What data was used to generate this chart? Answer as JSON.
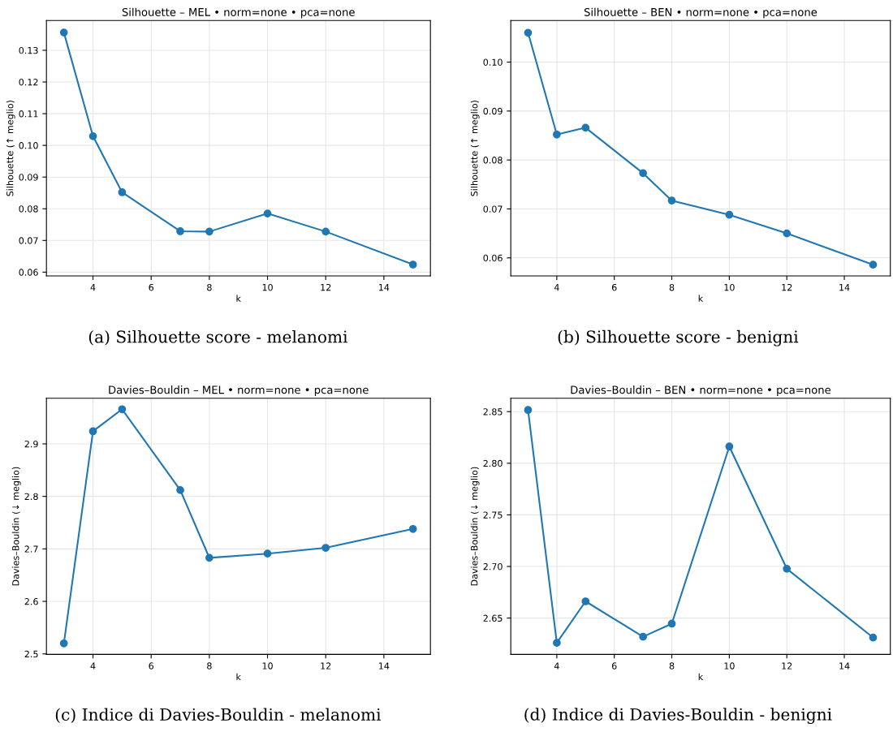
{
  "chart_data": [
    {
      "type": "line",
      "title": "Silhouette – MEL • norm=none • pca=none",
      "xlabel": "k",
      "ylabel": "Silhouette (↑ meglio)",
      "x": [
        3,
        4,
        5,
        7,
        8,
        10,
        12,
        15
      ],
      "series": [
        {
          "color": "#1f77b4",
          "values": [
            0.1356,
            0.1029,
            0.0852,
            0.0729,
            0.0728,
            0.0785,
            0.0728,
            0.0624
          ]
        }
      ],
      "xlim": [
        2.4,
        15.6
      ],
      "xticks": [
        4,
        6,
        8,
        10,
        12,
        14
      ],
      "ylim": [
        0.0588,
        0.1394
      ],
      "yticks": [
        0.06,
        0.07,
        0.08,
        0.09,
        {
          "value": 0.1,
          "label": "0.10"
        },
        0.11,
        0.12,
        0.13
      ],
      "grid": true,
      "marker": "circle",
      "line_style": "solid",
      "annotations": [
        "(a) Silhouette score - melanomi"
      ]
    },
    {
      "type": "line",
      "title": "Silhouette – BEN • norm=none • pca=none",
      "xlabel": "k",
      "ylabel": "Silhouette (↑ meglio)",
      "x": [
        3,
        4,
        5,
        7,
        8,
        10,
        12,
        15
      ],
      "series": [
        {
          "color": "#1f77b4",
          "values": [
            0.106,
            0.0852,
            0.0866,
            0.0773,
            0.0717,
            0.0688,
            0.065,
            0.0586
          ]
        }
      ],
      "xlim": [
        2.4,
        15.6
      ],
      "xticks": [
        4,
        6,
        8,
        10,
        12,
        14
      ],
      "ylim": [
        0.0563,
        0.1085
      ],
      "yticks": [
        0.06,
        0.07,
        0.08,
        0.09,
        {
          "value": 0.1,
          "label": "0.10"
        }
      ],
      "grid": true,
      "marker": "circle",
      "line_style": "solid",
      "annotations": [
        "(b) Silhouette score - benigni"
      ]
    },
    {
      "type": "line",
      "title": "Davies–Bouldin – MEL • norm=none • pca=none",
      "xlabel": "k",
      "ylabel": "Davies–Bouldin (↓ meglio)",
      "x": [
        3,
        4,
        5,
        7,
        8,
        10,
        12,
        15
      ],
      "series": [
        {
          "color": "#1f77b4",
          "values": [
            2.52,
            2.924,
            2.966,
            2.812,
            2.683,
            2.691,
            2.702,
            2.738
          ]
        }
      ],
      "xlim": [
        2.4,
        15.6
      ],
      "xticks": [
        4,
        6,
        8,
        10,
        12,
        14
      ],
      "ylim": [
        2.499,
        2.987
      ],
      "yticks": [
        2.5,
        2.6,
        2.7,
        2.8,
        2.9
      ],
      "grid": true,
      "marker": "circle",
      "line_style": "solid",
      "annotations": [
        "(c) Indice di Davies-Bouldin - melanomi"
      ]
    },
    {
      "type": "line",
      "title": "Davies–Bouldin – BEN • norm=none • pca=none",
      "xlabel": "k",
      "ylabel": "Davies–Bouldin (↓ meglio)",
      "x": [
        3,
        4,
        5,
        7,
        8,
        10,
        12,
        15
      ],
      "series": [
        {
          "color": "#1f77b4",
          "values": [
            2.8516,
            2.626,
            2.6662,
            2.6319,
            2.6446,
            2.8162,
            2.6978,
            2.6311
          ]
        }
      ],
      "xlim": [
        2.4,
        15.6
      ],
      "xticks": [
        4,
        6,
        8,
        10,
        12,
        14
      ],
      "ylim": [
        2.6148,
        2.863
      ],
      "yticks": [
        2.65,
        {
          "value": 2.7,
          "label": "2.70"
        },
        2.75,
        {
          "value": 2.8,
          "label": "2.80"
        },
        2.85
      ],
      "grid": true,
      "marker": "circle",
      "line_style": "solid",
      "annotations": [
        "(d) Indice di Davies-Bouldin - benigni"
      ]
    }
  ]
}
